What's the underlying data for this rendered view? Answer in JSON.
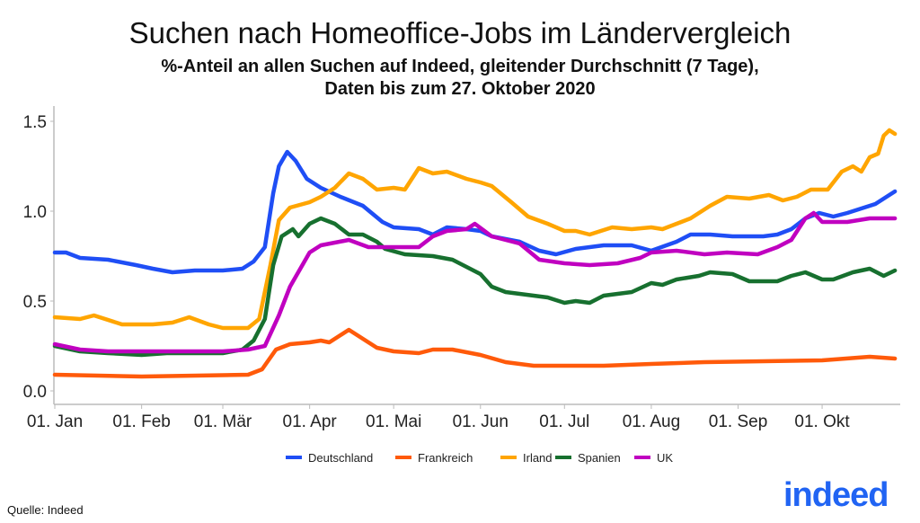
{
  "title": "Suchen nach Homeoffice-Jobs im Ländervergleich",
  "subtitle_line1": "%-Anteil an allen Suchen auf Indeed, gleitender Durchschnitt (7 Tage),",
  "subtitle_line2": "Daten bis zum 27. Oktober 2020",
  "source": "Quelle: Indeed",
  "logo_text": "indeed",
  "chart_data": {
    "type": "line",
    "title": "Suchen nach Homeoffice-Jobs im Ländervergleich",
    "xlabel": "",
    "ylabel": "",
    "ylim": [
      0,
      1.5
    ],
    "yticks": [
      "0.0",
      "0.5",
      "1.0",
      "1.5"
    ],
    "xticks": [
      {
        "date": "2020-01-01",
        "label": "01. Jan"
      },
      {
        "date": "2020-02-01",
        "label": "01. Feb"
      },
      {
        "date": "2020-03-01",
        "label": "01. Mär"
      },
      {
        "date": "2020-04-01",
        "label": "01. Apr"
      },
      {
        "date": "2020-05-01",
        "label": "01. Mai"
      },
      {
        "date": "2020-06-01",
        "label": "01. Jun"
      },
      {
        "date": "2020-07-01",
        "label": "01. Jul"
      },
      {
        "date": "2020-08-01",
        "label": "01. Aug"
      },
      {
        "date": "2020-09-01",
        "label": "01. Sep"
      },
      {
        "date": "2020-10-01",
        "label": "01. Okt"
      }
    ],
    "grid": false,
    "legend": "bottom",
    "series": [
      {
        "name": "Deutschland",
        "color": "#1f4ef5",
        "points": [
          [
            "2020-01-01",
            0.77
          ],
          [
            "2020-01-05",
            0.77
          ],
          [
            "2020-01-10",
            0.74
          ],
          [
            "2020-01-20",
            0.73
          ],
          [
            "2020-01-30",
            0.7
          ],
          [
            "2020-02-05",
            0.68
          ],
          [
            "2020-02-12",
            0.66
          ],
          [
            "2020-02-20",
            0.67
          ],
          [
            "2020-03-01",
            0.67
          ],
          [
            "2020-03-08",
            0.68
          ],
          [
            "2020-03-12",
            0.72
          ],
          [
            "2020-03-16",
            0.8
          ],
          [
            "2020-03-19",
            1.1
          ],
          [
            "2020-03-21",
            1.25
          ],
          [
            "2020-03-24",
            1.33
          ],
          [
            "2020-03-27",
            1.28
          ],
          [
            "2020-03-31",
            1.18
          ],
          [
            "2020-04-05",
            1.13
          ],
          [
            "2020-04-12",
            1.08
          ],
          [
            "2020-04-20",
            1.03
          ],
          [
            "2020-04-27",
            0.94
          ],
          [
            "2020-05-01",
            0.91
          ],
          [
            "2020-05-10",
            0.9
          ],
          [
            "2020-05-15",
            0.87
          ],
          [
            "2020-05-20",
            0.91
          ],
          [
            "2020-05-27",
            0.9
          ],
          [
            "2020-06-01",
            0.89
          ],
          [
            "2020-06-05",
            0.86
          ],
          [
            "2020-06-15",
            0.83
          ],
          [
            "2020-06-22",
            0.78
          ],
          [
            "2020-06-28",
            0.76
          ],
          [
            "2020-07-05",
            0.79
          ],
          [
            "2020-07-15",
            0.81
          ],
          [
            "2020-07-25",
            0.81
          ],
          [
            "2020-08-01",
            0.78
          ],
          [
            "2020-08-10",
            0.83
          ],
          [
            "2020-08-15",
            0.87
          ],
          [
            "2020-08-22",
            0.87
          ],
          [
            "2020-08-30",
            0.86
          ],
          [
            "2020-09-10",
            0.86
          ],
          [
            "2020-09-15",
            0.87
          ],
          [
            "2020-09-20",
            0.9
          ],
          [
            "2020-09-25",
            0.96
          ],
          [
            "2020-09-30",
            0.99
          ],
          [
            "2020-10-05",
            0.97
          ],
          [
            "2020-10-10",
            0.99
          ],
          [
            "2020-10-20",
            1.04
          ],
          [
            "2020-10-27",
            1.11
          ]
        ]
      },
      {
        "name": "Frankreich",
        "color": "#ff5a0a",
        "points": [
          [
            "2020-01-01",
            0.09
          ],
          [
            "2020-02-01",
            0.08
          ],
          [
            "2020-03-10",
            0.09
          ],
          [
            "2020-03-15",
            0.12
          ],
          [
            "2020-03-20",
            0.23
          ],
          [
            "2020-03-25",
            0.26
          ],
          [
            "2020-04-01",
            0.27
          ],
          [
            "2020-04-05",
            0.28
          ],
          [
            "2020-04-08",
            0.27
          ],
          [
            "2020-04-12",
            0.31
          ],
          [
            "2020-04-15",
            0.34
          ],
          [
            "2020-04-20",
            0.29
          ],
          [
            "2020-04-25",
            0.24
          ],
          [
            "2020-05-01",
            0.22
          ],
          [
            "2020-05-10",
            0.21
          ],
          [
            "2020-05-15",
            0.23
          ],
          [
            "2020-05-22",
            0.23
          ],
          [
            "2020-06-01",
            0.2
          ],
          [
            "2020-06-10",
            0.16
          ],
          [
            "2020-06-20",
            0.14
          ],
          [
            "2020-07-15",
            0.14
          ],
          [
            "2020-08-01",
            0.15
          ],
          [
            "2020-08-20",
            0.16
          ],
          [
            "2020-10-01",
            0.17
          ],
          [
            "2020-10-18",
            0.19
          ],
          [
            "2020-10-27",
            0.18
          ]
        ]
      },
      {
        "name": "Irland",
        "color": "#ffa500",
        "points": [
          [
            "2020-01-01",
            0.41
          ],
          [
            "2020-01-10",
            0.4
          ],
          [
            "2020-01-15",
            0.42
          ],
          [
            "2020-01-25",
            0.37
          ],
          [
            "2020-02-05",
            0.37
          ],
          [
            "2020-02-12",
            0.38
          ],
          [
            "2020-02-18",
            0.41
          ],
          [
            "2020-02-25",
            0.37
          ],
          [
            "2020-03-01",
            0.35
          ],
          [
            "2020-03-10",
            0.35
          ],
          [
            "2020-03-14",
            0.4
          ],
          [
            "2020-03-18",
            0.7
          ],
          [
            "2020-03-21",
            0.95
          ],
          [
            "2020-03-25",
            1.02
          ],
          [
            "2020-04-01",
            1.05
          ],
          [
            "2020-04-05",
            1.08
          ],
          [
            "2020-04-10",
            1.13
          ],
          [
            "2020-04-15",
            1.21
          ],
          [
            "2020-04-20",
            1.18
          ],
          [
            "2020-04-25",
            1.12
          ],
          [
            "2020-05-01",
            1.13
          ],
          [
            "2020-05-05",
            1.12
          ],
          [
            "2020-05-10",
            1.24
          ],
          [
            "2020-05-15",
            1.21
          ],
          [
            "2020-05-20",
            1.22
          ],
          [
            "2020-05-27",
            1.18
          ],
          [
            "2020-06-01",
            1.16
          ],
          [
            "2020-06-05",
            1.14
          ],
          [
            "2020-06-12",
            1.05
          ],
          [
            "2020-06-18",
            0.97
          ],
          [
            "2020-06-25",
            0.93
          ],
          [
            "2020-07-01",
            0.89
          ],
          [
            "2020-07-05",
            0.89
          ],
          [
            "2020-07-10",
            0.87
          ],
          [
            "2020-07-18",
            0.91
          ],
          [
            "2020-07-25",
            0.9
          ],
          [
            "2020-08-01",
            0.91
          ],
          [
            "2020-08-05",
            0.9
          ],
          [
            "2020-08-15",
            0.96
          ],
          [
            "2020-08-22",
            1.03
          ],
          [
            "2020-08-28",
            1.08
          ],
          [
            "2020-09-05",
            1.07
          ],
          [
            "2020-09-12",
            1.09
          ],
          [
            "2020-09-17",
            1.06
          ],
          [
            "2020-09-22",
            1.08
          ],
          [
            "2020-09-27",
            1.12
          ],
          [
            "2020-10-03",
            1.12
          ],
          [
            "2020-10-08",
            1.22
          ],
          [
            "2020-10-12",
            1.25
          ],
          [
            "2020-10-15",
            1.22
          ],
          [
            "2020-10-18",
            1.3
          ],
          [
            "2020-10-21",
            1.32
          ],
          [
            "2020-10-23",
            1.42
          ],
          [
            "2020-10-25",
            1.45
          ],
          [
            "2020-10-27",
            1.43
          ]
        ]
      },
      {
        "name": "Spanien",
        "color": "#17702f",
        "points": [
          [
            "2020-01-01",
            0.25
          ],
          [
            "2020-01-10",
            0.22
          ],
          [
            "2020-01-20",
            0.21
          ],
          [
            "2020-02-01",
            0.2
          ],
          [
            "2020-02-10",
            0.21
          ],
          [
            "2020-03-01",
            0.21
          ],
          [
            "2020-03-08",
            0.23
          ],
          [
            "2020-03-12",
            0.28
          ],
          [
            "2020-03-16",
            0.4
          ],
          [
            "2020-03-19",
            0.7
          ],
          [
            "2020-03-22",
            0.86
          ],
          [
            "2020-03-26",
            0.9
          ],
          [
            "2020-03-28",
            0.86
          ],
          [
            "2020-04-01",
            0.93
          ],
          [
            "2020-04-05",
            0.96
          ],
          [
            "2020-04-10",
            0.93
          ],
          [
            "2020-04-15",
            0.87
          ],
          [
            "2020-04-20",
            0.87
          ],
          [
            "2020-04-25",
            0.83
          ],
          [
            "2020-04-28",
            0.79
          ],
          [
            "2020-05-05",
            0.76
          ],
          [
            "2020-05-15",
            0.75
          ],
          [
            "2020-05-22",
            0.73
          ],
          [
            "2020-06-01",
            0.65
          ],
          [
            "2020-06-05",
            0.58
          ],
          [
            "2020-06-10",
            0.55
          ],
          [
            "2020-06-15",
            0.54
          ],
          [
            "2020-06-25",
            0.52
          ],
          [
            "2020-07-01",
            0.49
          ],
          [
            "2020-07-05",
            0.5
          ],
          [
            "2020-07-10",
            0.49
          ],
          [
            "2020-07-15",
            0.53
          ],
          [
            "2020-07-25",
            0.55
          ],
          [
            "2020-08-01",
            0.6
          ],
          [
            "2020-08-05",
            0.59
          ],
          [
            "2020-08-10",
            0.62
          ],
          [
            "2020-08-18",
            0.64
          ],
          [
            "2020-08-22",
            0.66
          ],
          [
            "2020-08-30",
            0.65
          ],
          [
            "2020-09-05",
            0.61
          ],
          [
            "2020-09-15",
            0.61
          ],
          [
            "2020-09-20",
            0.64
          ],
          [
            "2020-09-25",
            0.66
          ],
          [
            "2020-10-01",
            0.62
          ],
          [
            "2020-10-05",
            0.62
          ],
          [
            "2020-10-12",
            0.66
          ],
          [
            "2020-10-18",
            0.68
          ],
          [
            "2020-10-23",
            0.64
          ],
          [
            "2020-10-27",
            0.67
          ]
        ]
      },
      {
        "name": "UK",
        "color": "#c000c0",
        "points": [
          [
            "2020-01-01",
            0.26
          ],
          [
            "2020-01-10",
            0.23
          ],
          [
            "2020-01-20",
            0.22
          ],
          [
            "2020-02-01",
            0.22
          ],
          [
            "2020-03-01",
            0.22
          ],
          [
            "2020-03-10",
            0.23
          ],
          [
            "2020-03-16",
            0.25
          ],
          [
            "2020-03-21",
            0.42
          ],
          [
            "2020-03-25",
            0.58
          ],
          [
            "2020-04-01",
            0.77
          ],
          [
            "2020-04-05",
            0.81
          ],
          [
            "2020-04-15",
            0.84
          ],
          [
            "2020-04-22",
            0.8
          ],
          [
            "2020-05-01",
            0.8
          ],
          [
            "2020-05-10",
            0.8
          ],
          [
            "2020-05-15",
            0.86
          ],
          [
            "2020-05-20",
            0.89
          ],
          [
            "2020-05-27",
            0.9
          ],
          [
            "2020-05-30",
            0.93
          ],
          [
            "2020-06-05",
            0.86
          ],
          [
            "2020-06-15",
            0.82
          ],
          [
            "2020-06-22",
            0.73
          ],
          [
            "2020-07-01",
            0.71
          ],
          [
            "2020-07-10",
            0.7
          ],
          [
            "2020-07-20",
            0.71
          ],
          [
            "2020-07-28",
            0.74
          ],
          [
            "2020-08-01",
            0.77
          ],
          [
            "2020-08-10",
            0.78
          ],
          [
            "2020-08-20",
            0.76
          ],
          [
            "2020-08-28",
            0.77
          ],
          [
            "2020-09-08",
            0.76
          ],
          [
            "2020-09-15",
            0.8
          ],
          [
            "2020-09-20",
            0.84
          ],
          [
            "2020-09-25",
            0.96
          ],
          [
            "2020-09-28",
            0.99
          ],
          [
            "2020-10-01",
            0.94
          ],
          [
            "2020-10-10",
            0.94
          ],
          [
            "2020-10-18",
            0.96
          ],
          [
            "2020-10-27",
            0.96
          ]
        ]
      }
    ]
  }
}
